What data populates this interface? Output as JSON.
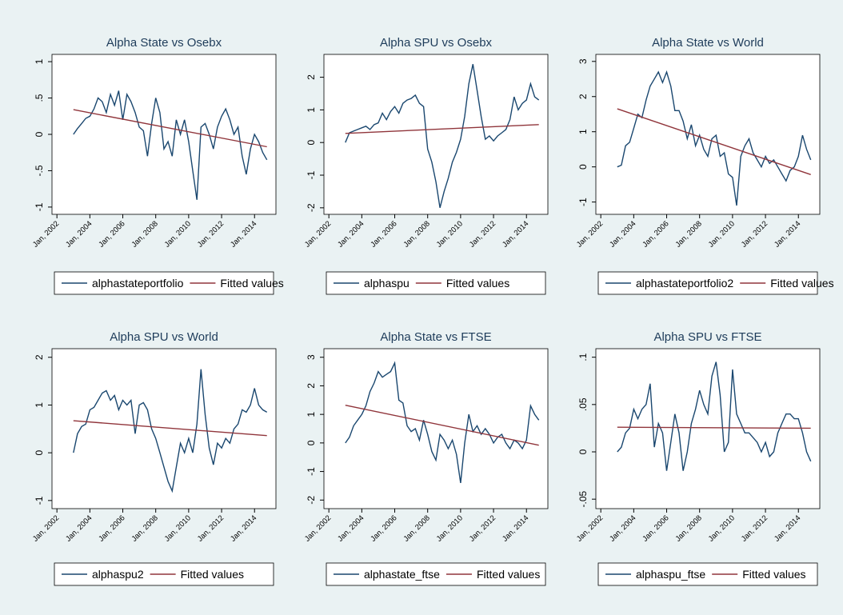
{
  "chart_data": [
    {
      "type": "line",
      "title": "Alpha State vs Osebx",
      "x": [
        2003,
        2003.25,
        2003.5,
        2003.75,
        2004,
        2004.25,
        2004.5,
        2004.75,
        2005,
        2005.25,
        2005.5,
        2005.75,
        2006,
        2006.25,
        2006.5,
        2006.75,
        2007,
        2007.25,
        2007.5,
        2007.75,
        2008,
        2008.25,
        2008.5,
        2008.75,
        2009,
        2009.25,
        2009.5,
        2009.75,
        2010,
        2010.25,
        2010.5,
        2010.75,
        2011,
        2011.25,
        2011.5,
        2011.75,
        2012,
        2012.25,
        2012.5,
        2012.75,
        2013,
        2013.25,
        2013.5,
        2013.75,
        2014,
        2014.25,
        2014.5,
        2014.75
      ],
      "xlim": [
        2001.7,
        2015.3
      ],
      "xticks": [
        {
          "value": 2002,
          "label": "Jan, 2002"
        },
        {
          "value": 2004,
          "label": "Jan, 2004"
        },
        {
          "value": 2006,
          "label": "Jan, 2006"
        },
        {
          "value": 2008,
          "label": "Jan, 2008"
        },
        {
          "value": 2010,
          "label": "Jan, 2010"
        },
        {
          "value": 2012,
          "label": "Jan, 2012"
        },
        {
          "value": 2014,
          "label": "Jan, 2014"
        }
      ],
      "ylim": [
        -1.1,
        1.1
      ],
      "yticks": [
        -1,
        {
          "value": -0.5,
          "label": "-.5"
        },
        0,
        {
          "value": 0.5,
          "label": ".5"
        },
        1
      ],
      "series": [
        {
          "name": "alphastateportfolio",
          "color": "#1a476f",
          "values": [
            0,
            0.08,
            0.15,
            0.22,
            0.25,
            0.35,
            0.5,
            0.45,
            0.3,
            0.55,
            0.4,
            0.6,
            0.2,
            0.55,
            0.45,
            0.3,
            0.1,
            0.05,
            -0.3,
            0.15,
            0.5,
            0.3,
            -0.2,
            -0.1,
            -0.3,
            0.2,
            0,
            0.2,
            -0.1,
            -0.5,
            -0.9,
            0.1,
            0.15,
            0,
            -0.2,
            0.1,
            0.25,
            0.35,
            0.2,
            0,
            0.1,
            -0.3,
            -0.55,
            -0.2,
            0,
            -0.1,
            -0.25,
            -0.35
          ]
        },
        {
          "name": "Fitted values",
          "color": "#90353b",
          "x": [
            2003,
            2014.75
          ],
          "values": [
            0.34,
            -0.17
          ]
        }
      ]
    },
    {
      "type": "line",
      "title": "Alpha SPU vs Osebx",
      "x": [
        2003,
        2003.25,
        2003.5,
        2003.75,
        2004,
        2004.25,
        2004.5,
        2004.75,
        2005,
        2005.25,
        2005.5,
        2005.75,
        2006,
        2006.25,
        2006.5,
        2006.75,
        2007,
        2007.25,
        2007.5,
        2007.75,
        2008,
        2008.25,
        2008.5,
        2008.75,
        2009,
        2009.25,
        2009.5,
        2009.75,
        2010,
        2010.25,
        2010.5,
        2010.75,
        2011,
        2011.25,
        2011.5,
        2011.75,
        2012,
        2012.25,
        2012.5,
        2012.75,
        2013,
        2013.25,
        2013.5,
        2013.75,
        2014,
        2014.25,
        2014.5,
        2014.75
      ],
      "xlim": [
        2001.7,
        2015.3
      ],
      "xticks": [
        {
          "value": 2002,
          "label": "Jan, 2002"
        },
        {
          "value": 2004,
          "label": "Jan, 2004"
        },
        {
          "value": 2006,
          "label": "Jan, 2006"
        },
        {
          "value": 2008,
          "label": "Jan, 2008"
        },
        {
          "value": 2010,
          "label": "Jan, 2010"
        },
        {
          "value": 2012,
          "label": "Jan, 2012"
        },
        {
          "value": 2014,
          "label": "Jan, 2014"
        }
      ],
      "ylim": [
        -2.2,
        2.7
      ],
      "yticks": [
        -2,
        -1,
        0,
        1,
        2
      ],
      "series": [
        {
          "name": "alphaspu",
          "color": "#1a476f",
          "values": [
            0,
            0.3,
            0.35,
            0.4,
            0.45,
            0.5,
            0.4,
            0.55,
            0.6,
            0.9,
            0.7,
            0.95,
            1.1,
            0.9,
            1.2,
            1.3,
            1.35,
            1.45,
            1.2,
            1.1,
            -0.2,
            -0.6,
            -1.2,
            -2,
            -1.5,
            -1.1,
            -0.6,
            -0.3,
            0.1,
            0.8,
            1.8,
            2.4,
            1.6,
            0.8,
            0.1,
            0.2,
            0.05,
            0.2,
            0.3,
            0.4,
            0.7,
            1.4,
            1,
            1.2,
            1.3,
            1.8,
            1.4,
            1.3
          ]
        },
        {
          "name": "Fitted values",
          "color": "#90353b",
          "x": [
            2003,
            2014.75
          ],
          "values": [
            0.28,
            0.55
          ]
        }
      ]
    },
    {
      "type": "line",
      "title": "Alpha State vs World",
      "x": [
        2003,
        2003.25,
        2003.5,
        2003.75,
        2004,
        2004.25,
        2004.5,
        2004.75,
        2005,
        2005.25,
        2005.5,
        2005.75,
        2006,
        2006.25,
        2006.5,
        2006.75,
        2007,
        2007.25,
        2007.5,
        2007.75,
        2008,
        2008.25,
        2008.5,
        2008.75,
        2009,
        2009.25,
        2009.5,
        2009.75,
        2010,
        2010.25,
        2010.5,
        2010.75,
        2011,
        2011.25,
        2011.5,
        2011.75,
        2012,
        2012.25,
        2012.5,
        2012.75,
        2013,
        2013.25,
        2013.5,
        2013.75,
        2014,
        2014.25,
        2014.5,
        2014.75
      ],
      "xlim": [
        2001.7,
        2015.3
      ],
      "xticks": [
        {
          "value": 2002,
          "label": "Jan, 2002"
        },
        {
          "value": 2004,
          "label": "Jan, 2004"
        },
        {
          "value": 2006,
          "label": "Jan, 2006"
        },
        {
          "value": 2008,
          "label": "Jan, 2008"
        },
        {
          "value": 2010,
          "label": "Jan, 2010"
        },
        {
          "value": 2012,
          "label": "Jan, 2012"
        },
        {
          "value": 2014,
          "label": "Jan, 2014"
        }
      ],
      "ylim": [
        -1.35,
        3.2
      ],
      "yticks": [
        -1,
        0,
        1,
        2,
        3
      ],
      "series": [
        {
          "name": "alphastateportfolio2",
          "color": "#1a476f",
          "values": [
            0,
            0.05,
            0.6,
            0.7,
            1.1,
            1.5,
            1.4,
            1.9,
            2.3,
            2.5,
            2.7,
            2.4,
            2.7,
            2.3,
            1.6,
            1.6,
            1.3,
            0.8,
            1.2,
            0.6,
            0.9,
            0.5,
            0.3,
            0.8,
            0.9,
            0.3,
            0.4,
            -0.2,
            -0.3,
            -1.1,
            0.3,
            0.6,
            0.8,
            0.4,
            0.2,
            0,
            0.3,
            0.1,
            0.2,
            0,
            -0.2,
            -0.4,
            -0.1,
            0,
            0.3,
            0.9,
            0.5,
            0.2
          ]
        },
        {
          "name": "Fitted values",
          "color": "#90353b",
          "x": [
            2003,
            2014.75
          ],
          "values": [
            1.65,
            -0.22
          ]
        }
      ]
    },
    {
      "type": "line",
      "title": "Alpha SPU vs World",
      "x": [
        2003,
        2003.25,
        2003.5,
        2003.75,
        2004,
        2004.25,
        2004.5,
        2004.75,
        2005,
        2005.25,
        2005.5,
        2005.75,
        2006,
        2006.25,
        2006.5,
        2006.75,
        2007,
        2007.25,
        2007.5,
        2007.75,
        2008,
        2008.25,
        2008.5,
        2008.75,
        2009,
        2009.25,
        2009.5,
        2009.75,
        2010,
        2010.25,
        2010.5,
        2010.75,
        2011,
        2011.25,
        2011.5,
        2011.75,
        2012,
        2012.25,
        2012.5,
        2012.75,
        2013,
        2013.25,
        2013.5,
        2013.75,
        2014,
        2014.25,
        2014.5,
        2014.75
      ],
      "xlim": [
        2001.7,
        2015.3
      ],
      "xticks": [
        {
          "value": 2002,
          "label": "Jan, 2002"
        },
        {
          "value": 2004,
          "label": "Jan, 2004"
        },
        {
          "value": 2006,
          "label": "Jan, 2006"
        },
        {
          "value": 2008,
          "label": "Jan, 2008"
        },
        {
          "value": 2010,
          "label": "Jan, 2010"
        },
        {
          "value": 2012,
          "label": "Jan, 2012"
        },
        {
          "value": 2014,
          "label": "Jan, 2014"
        }
      ],
      "ylim": [
        -1.17,
        2.18
      ],
      "yticks": [
        -1,
        0,
        1,
        2
      ],
      "series": [
        {
          "name": "alphaspu2",
          "color": "#1a476f",
          "values": [
            0,
            0.4,
            0.55,
            0.6,
            0.9,
            0.95,
            1.1,
            1.25,
            1.3,
            1.1,
            1.2,
            0.9,
            1.1,
            1,
            1.1,
            0.4,
            1,
            1.05,
            0.9,
            0.5,
            0.3,
            0,
            -0.3,
            -0.6,
            -0.8,
            -0.3,
            0.2,
            0,
            0.3,
            0,
            0.6,
            1.75,
            0.8,
            0.1,
            -0.25,
            0.2,
            0.1,
            0.3,
            0.2,
            0.5,
            0.6,
            0.9,
            0.85,
            1,
            1.35,
            1,
            0.9,
            0.85
          ]
        },
        {
          "name": "Fitted values",
          "color": "#90353b",
          "x": [
            2003,
            2014.75
          ],
          "values": [
            0.67,
            0.36
          ]
        }
      ]
    },
    {
      "type": "line",
      "title": "Alpha State vs FTSE",
      "x": [
        2003,
        2003.25,
        2003.5,
        2003.75,
        2004,
        2004.25,
        2004.5,
        2004.75,
        2005,
        2005.25,
        2005.5,
        2005.75,
        2006,
        2006.25,
        2006.5,
        2006.75,
        2007,
        2007.25,
        2007.5,
        2007.75,
        2008,
        2008.25,
        2008.5,
        2008.75,
        2009,
        2009.25,
        2009.5,
        2009.75,
        2010,
        2010.25,
        2010.5,
        2010.75,
        2011,
        2011.25,
        2011.5,
        2011.75,
        2012,
        2012.25,
        2012.5,
        2012.75,
        2013,
        2013.25,
        2013.5,
        2013.75,
        2014,
        2014.25,
        2014.5,
        2014.75
      ],
      "xlim": [
        2001.7,
        2015.3
      ],
      "xticks": [
        {
          "value": 2002,
          "label": "Jan, 2002"
        },
        {
          "value": 2004,
          "label": "Jan, 2004"
        },
        {
          "value": 2006,
          "label": "Jan, 2006"
        },
        {
          "value": 2008,
          "label": "Jan, 2008"
        },
        {
          "value": 2010,
          "label": "Jan, 2010"
        },
        {
          "value": 2012,
          "label": "Jan, 2012"
        },
        {
          "value": 2014,
          "label": "Jan, 2014"
        }
      ],
      "ylim": [
        -2.3,
        3.3
      ],
      "yticks": [
        -2,
        -1,
        0,
        1,
        2,
        3
      ],
      "series": [
        {
          "name": "alphastate_ftse",
          "color": "#1a476f",
          "values": [
            0,
            0.2,
            0.6,
            0.8,
            1,
            1.3,
            1.8,
            2.1,
            2.5,
            2.3,
            2.4,
            2.5,
            2.8,
            1.5,
            1.4,
            0.6,
            0.4,
            0.5,
            0.1,
            0.8,
            0.3,
            -0.3,
            -0.6,
            0.3,
            0.1,
            -0.2,
            0.1,
            -0.4,
            -1.4,
            0,
            1,
            0.4,
            0.6,
            0.3,
            0.5,
            0.3,
            0,
            0.2,
            0.3,
            0,
            -0.2,
            0.1,
            0,
            -0.2,
            0.1,
            1.3,
            1,
            0.8
          ]
        },
        {
          "name": "Fitted values",
          "color": "#90353b",
          "x": [
            2003,
            2014.75
          ],
          "values": [
            1.32,
            -0.08
          ]
        }
      ]
    },
    {
      "type": "line",
      "title": "Alpha SPU vs FTSE",
      "x": [
        2003,
        2003.25,
        2003.5,
        2003.75,
        2004,
        2004.25,
        2004.5,
        2004.75,
        2005,
        2005.25,
        2005.5,
        2005.75,
        2006,
        2006.25,
        2006.5,
        2006.75,
        2007,
        2007.25,
        2007.5,
        2007.75,
        2008,
        2008.25,
        2008.5,
        2008.75,
        2009,
        2009.25,
        2009.5,
        2009.75,
        2010,
        2010.25,
        2010.5,
        2010.75,
        2011,
        2011.25,
        2011.5,
        2011.75,
        2012,
        2012.25,
        2012.5,
        2012.75,
        2013,
        2013.25,
        2013.5,
        2013.75,
        2014,
        2014.25,
        2014.5,
        2014.75
      ],
      "xlim": [
        2001.7,
        2015.3
      ],
      "xticks": [
        {
          "value": 2002,
          "label": "Jan, 2002"
        },
        {
          "value": 2004,
          "label": "Jan, 2004"
        },
        {
          "value": 2006,
          "label": "Jan, 2006"
        },
        {
          "value": 2008,
          "label": "Jan, 2008"
        },
        {
          "value": 2010,
          "label": "Jan, 2010"
        },
        {
          "value": 2012,
          "label": "Jan, 2012"
        },
        {
          "value": 2014,
          "label": "Jan, 2014"
        }
      ],
      "ylim": [
        -0.06,
        0.109
      ],
      "yticks": [
        {
          "value": -0.05,
          "label": "-.05"
        },
        0,
        {
          "value": 0.05,
          "label": ".05"
        },
        {
          "value": 0.1,
          "label": ".1"
        }
      ],
      "series": [
        {
          "name": "alphaspu_ftse",
          "color": "#1a476f",
          "values": [
            0,
            0.005,
            0.02,
            0.025,
            0.045,
            0.035,
            0.045,
            0.05,
            0.072,
            0.005,
            0.03,
            0.02,
            -0.02,
            0.01,
            0.04,
            0.02,
            -0.02,
            0,
            0.03,
            0.045,
            0.065,
            0.05,
            0.04,
            0.08,
            0.095,
            0.06,
            0,
            0.01,
            0.087,
            0.04,
            0.03,
            0.02,
            0.02,
            0.015,
            0.01,
            0,
            0.01,
            -0.005,
            0,
            0.02,
            0.03,
            0.04,
            0.04,
            0.035,
            0.035,
            0.02,
            0,
            -0.01
          ]
        },
        {
          "name": "Fitted values",
          "color": "#90353b",
          "x": [
            2003,
            2014.75
          ],
          "values": [
            0.026,
            0.025
          ]
        }
      ]
    }
  ]
}
